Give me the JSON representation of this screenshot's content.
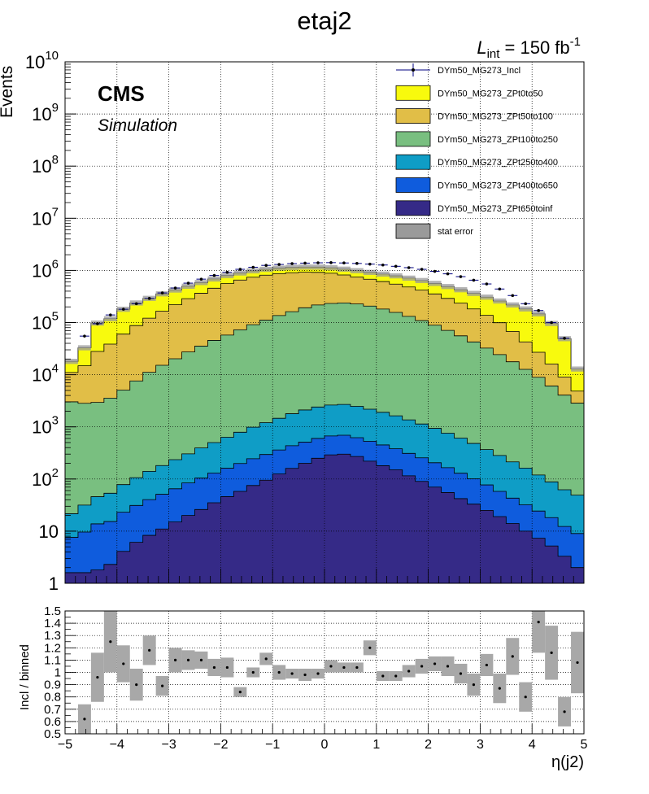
{
  "chart_data": [
    {
      "type": "area",
      "subtype": "stacked-step-histogram",
      "title": "etaj2",
      "ylabel": "Events",
      "yscale": "log",
      "ylim": [
        1,
        10000000000
      ],
      "xlim": [
        -5,
        5
      ],
      "y_tick_labels": [
        {
          "value": 1,
          "base": "1",
          "exp": ""
        },
        {
          "value": 10,
          "base": "10",
          "exp": ""
        },
        {
          "value": 100,
          "base": "10",
          "exp": "2"
        },
        {
          "value": 1000,
          "base": "10",
          "exp": "3"
        },
        {
          "value": 10000,
          "base": "10",
          "exp": "4"
        },
        {
          "value": 100000,
          "base": "10",
          "exp": "5"
        },
        {
          "value": 1000000,
          "base": "10",
          "exp": "6"
        },
        {
          "value": 10000000,
          "base": "10",
          "exp": "7"
        },
        {
          "value": 100000000,
          "base": "10",
          "exp": "8"
        },
        {
          "value": 1000000000,
          "base": "10",
          "exp": "9"
        },
        {
          "value": 10000000000,
          "base": "10",
          "exp": "10"
        }
      ],
      "grid": true,
      "legend_position": "top-right",
      "luminosity": {
        "prefix": "L",
        "sub": "int",
        "text": " = 150 fb",
        "sup": "-1"
      },
      "cms_label": "CMS",
      "cms_sublabel": "Simulation",
      "bins": 40,
      "bin_width": 0.25,
      "series": [
        {
          "name": "DYm50_MG273_ZPt650toinf",
          "color": "#352a87",
          "values": [
            1.6,
            1.6,
            1.8,
            2.3,
            4.1,
            6.1,
            8.3,
            11,
            15,
            20,
            26,
            35,
            46,
            58,
            75,
            95,
            125,
            160,
            200,
            250,
            290,
            300,
            270,
            220,
            180,
            150,
            115,
            90,
            70,
            55,
            42,
            33,
            25,
            19,
            14,
            10,
            7.3,
            5.2,
            3.3,
            2.0
          ]
        },
        {
          "name": "DYm50_MG273_ZPt400to650",
          "color": "#0f5cdd",
          "values": [
            6,
            8,
            12,
            13,
            19,
            25,
            32,
            40,
            50,
            64,
            78,
            95,
            115,
            140,
            170,
            200,
            235,
            275,
            310,
            350,
            380,
            390,
            350,
            310,
            270,
            230,
            195,
            165,
            135,
            110,
            87,
            68,
            52,
            39,
            29,
            22,
            17,
            13,
            9,
            7
          ]
        },
        {
          "name": "DYm50_MG273_ZPt250to400",
          "color": "#0f9dc6",
          "values": [
            14,
            22,
            32,
            38,
            55,
            75,
            100,
            130,
            170,
            220,
            290,
            370,
            470,
            590,
            740,
            910,
            1100,
            1350,
            1600,
            1800,
            1950,
            2000,
            1850,
            1650,
            1450,
            1250,
            1050,
            880,
            730,
            590,
            480,
            380,
            290,
            225,
            170,
            130,
            95,
            70,
            50,
            40
          ]
        },
        {
          "name": "DYm50_MG273_ZPt100to250",
          "color": "#79bf80",
          "values": [
            3000,
            2800,
            2900,
            3500,
            5000,
            7500,
            11000,
            15000,
            20000,
            27000,
            35000,
            45000,
            57000,
            72000,
            90000,
            110000,
            135000,
            160000,
            190000,
            215000,
            230000,
            235000,
            225000,
            205000,
            180000,
            155000,
            130000,
            108000,
            88000,
            70000,
            55000,
            42000,
            32000,
            24000,
            17500,
            12500,
            8800,
            6000,
            4000,
            2800
          ]
        },
        {
          "name": "DYm50_MG273_ZPt50to100",
          "color": "#e1be47",
          "values": [
            8000,
            12000,
            25000,
            35000,
            55000,
            80000,
            110000,
            150000,
            200000,
            260000,
            330000,
            410000,
            500000,
            580000,
            650000,
            700000,
            730000,
            740000,
            730000,
            700000,
            650000,
            580000,
            520000,
            470000,
            430000,
            390000,
            350000,
            310000,
            265000,
            220000,
            180000,
            140000,
            105000,
            75000,
            50000,
            30000,
            18000,
            10000,
            5000,
            2000
          ]
        },
        {
          "name": "DYm50_MG273_ZPt0to50",
          "color": "#f8fa0d",
          "values": [
            7000,
            18000,
            70000,
            80000,
            120000,
            150000,
            170000,
            190000,
            200000,
            210000,
            220000,
            230000,
            240000,
            240000,
            240000,
            240000,
            240000,
            240000,
            240000,
            240000,
            240000,
            240000,
            240000,
            240000,
            240000,
            240000,
            230000,
            220000,
            210000,
            200000,
            190000,
            180000,
            170000,
            160000,
            150000,
            140000,
            120000,
            80000,
            40000,
            8000
          ]
        }
      ],
      "stat_error_label": "stat error",
      "incl_series": {
        "name": "DYm50_MG273_Incl",
        "color": "#000080",
        "values": [
          null,
          55000,
          95000,
          140000,
          180000,
          230000,
          290000,
          370000,
          460000,
          570000,
          680000,
          800000,
          920000,
          1050000,
          1150000,
          1250000,
          1300000,
          1350000,
          1380000,
          1400000,
          1410000,
          1390000,
          1360000,
          1320000,
          1270000,
          1200000,
          1130000,
          1050000,
          960000,
          860000,
          760000,
          650000,
          550000,
          440000,
          330000,
          230000,
          170000,
          100000,
          50000,
          null
        ]
      }
    },
    {
      "type": "scatter",
      "subtype": "ratio-with-error-bands",
      "ylabel": "Incl / binned",
      "xlabel": "η(j2)",
      "xlim": [
        -5,
        5
      ],
      "ylim": [
        0.5,
        1.5
      ],
      "x_ticks": [
        -5,
        -4,
        -3,
        -2,
        -1,
        0,
        1,
        2,
        3,
        4,
        5
      ],
      "y_ticks": [
        0.5,
        0.6,
        0.7,
        0.8,
        0.9,
        1,
        1.1,
        1.2,
        1.3,
        1.4,
        1.5
      ],
      "y_tick_labels": [
        "0.5",
        "0.6",
        "0.7",
        "0.8",
        "0.9",
        "1",
        "1.1",
        "1.2",
        "1.3",
        "1.4",
        "1.5"
      ],
      "grid": true,
      "values": [
        null,
        0.62,
        0.96,
        1.25,
        1.07,
        0.9,
        1.18,
        0.89,
        1.1,
        1.1,
        1.1,
        1.04,
        1.04,
        0.84,
        1.0,
        1.11,
        1.0,
        0.99,
        0.98,
        0.99,
        1.05,
        1.04,
        1.04,
        1.2,
        0.97,
        0.97,
        1.01,
        1.05,
        1.07,
        1.05,
        0.99,
        0.9,
        1.06,
        0.87,
        1.13,
        0.8,
        1.41,
        1.16,
        0.68,
        1.08
      ],
      "errors": [
        null,
        0.12,
        0.2,
        0.25,
        0.15,
        0.13,
        0.12,
        0.08,
        0.1,
        0.08,
        0.07,
        0.07,
        0.08,
        0.04,
        0.04,
        0.05,
        0.06,
        0.04,
        0.05,
        0.04,
        0.05,
        0.04,
        0.04,
        0.06,
        0.04,
        0.04,
        0.05,
        0.06,
        0.06,
        0.08,
        0.08,
        0.09,
        0.09,
        0.12,
        0.15,
        0.12,
        0.25,
        0.22,
        0.12,
        0.25
      ]
    }
  ]
}
